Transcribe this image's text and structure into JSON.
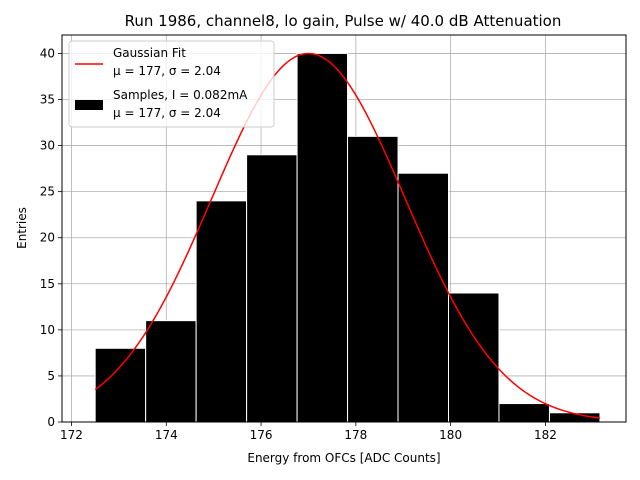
{
  "chart_data": {
    "type": "bar",
    "title": "Run 1986, channel8, lo gain, Pulse w/ 40.0 dB Attenuation",
    "xlabel": "Energy from OFCs [ADC Counts]",
    "ylabel": "Entries",
    "xlim": [
      171.8,
      183.7
    ],
    "ylim": [
      0,
      42
    ],
    "xticks": [
      172,
      174,
      176,
      178,
      180,
      182
    ],
    "yticks": [
      0,
      5,
      10,
      15,
      20,
      25,
      30,
      35,
      40
    ],
    "grid": true,
    "legend_position": "top-left",
    "histogram": {
      "name": "Samples, I = 0.082mA",
      "bin_edges": [
        172.5,
        173.565,
        174.63,
        175.695,
        176.76,
        177.825,
        178.89,
        179.955,
        181.02,
        182.085,
        183.15
      ],
      "counts": [
        8,
        11,
        24,
        29,
        40,
        31,
        27,
        14,
        2,
        1
      ],
      "color": "#000000",
      "edge_color": "#ffffff"
    },
    "fit": {
      "name": "Gaussian Fit",
      "mu": 177.0,
      "sigma": 2.04,
      "amplitude": 40,
      "x_range": [
        172.5,
        183.15
      ],
      "color": "#ff0000"
    },
    "legend": [
      {
        "label": "Gaussian Fit",
        "sublabel": "μ = 177, σ = 2.04",
        "kind": "line",
        "color": "#ff0000"
      },
      {
        "label": "Samples, I = 0.082mA",
        "sublabel": "μ = 177, σ = 2.04",
        "kind": "patch",
        "color": "#000000"
      }
    ]
  }
}
